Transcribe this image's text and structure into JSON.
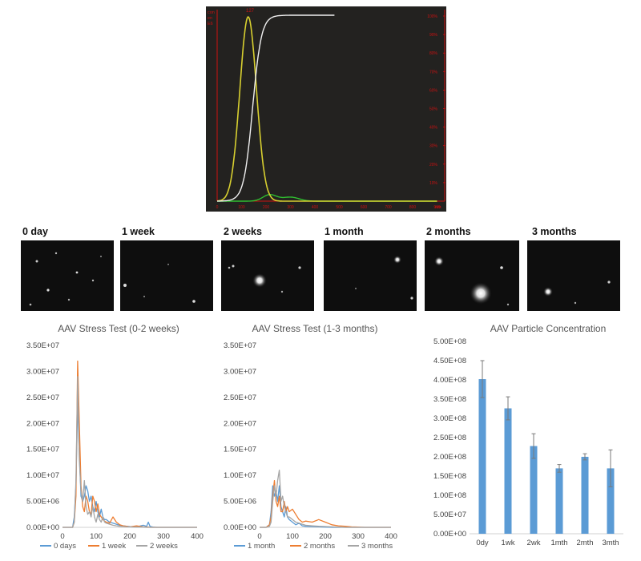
{
  "nta_plot": {
    "left_axis_label": [
      "con",
      "en",
      "E6"
    ],
    "peak_label": "127",
    "right_axis_label": [
      "cum",
      "%"
    ],
    "right_ticks": [
      "100%",
      "90%",
      "80%",
      "70%",
      "60%",
      "50%",
      "40%",
      "30%",
      "20%",
      "10%"
    ],
    "x_ticks": [
      "0",
      "100",
      "200",
      "300",
      "400",
      "500",
      "600",
      "700",
      "800",
      "900"
    ],
    "x_unit": "nm",
    "colors": {
      "bg": "#232220",
      "size": "#d8d030",
      "cumulative": "#f0f0f0",
      "secondary": "#30c030",
      "axis": "#cc1111"
    }
  },
  "panels": [
    {
      "label": "0 day"
    },
    {
      "label": "1 week"
    },
    {
      "label": "2 weeks"
    },
    {
      "label": "1 month"
    },
    {
      "label": "2 months"
    },
    {
      "label": "3 months"
    }
  ],
  "chart_data": [
    {
      "type": "line",
      "title": "AAV Stress Test (0-2 weeks)",
      "xlim": [
        0,
        400
      ],
      "ylim": [
        0,
        35000000
      ],
      "x_ticks": [
        "0",
        "100",
        "200",
        "300",
        "400"
      ],
      "y_ticks": [
        "0.00E+00",
        "5.00E+06",
        "1.00E+07",
        "1.50E+07",
        "2.00E+07",
        "2.50E+07",
        "3.00E+07",
        "3.50E+07"
      ],
      "x": [
        0,
        20,
        30,
        35,
        40,
        45,
        50,
        55,
        60,
        65,
        70,
        75,
        80,
        85,
        90,
        95,
        100,
        105,
        110,
        115,
        120,
        125,
        130,
        140,
        150,
        160,
        170,
        180,
        190,
        200,
        220,
        240,
        250,
        255,
        260,
        270,
        280,
        300,
        320,
        350,
        400
      ],
      "series": [
        {
          "name": "0 days",
          "color": "#5b9bd5",
          "values": [
            0,
            0,
            0,
            2000000,
            8000000,
            24000000,
            14000000,
            6000000,
            5000000,
            6000000,
            8000000,
            7000000,
            5000000,
            6000000,
            4000000,
            3000000,
            5000000,
            3000000,
            2000000,
            3500000,
            2000000,
            1500000,
            1500000,
            1000000,
            800000,
            600000,
            400000,
            300000,
            200000,
            150000,
            100000,
            400000,
            200000,
            1000000,
            200000,
            50000,
            0,
            0,
            0,
            0,
            0
          ]
        },
        {
          "name": "1 week",
          "color": "#ed7d31",
          "values": [
            0,
            0,
            0,
            1000000,
            6000000,
            32000000,
            20000000,
            8000000,
            4000000,
            3000000,
            6000000,
            5000000,
            3000000,
            2500000,
            6000000,
            5000000,
            3000000,
            4500000,
            2500000,
            2000000,
            1500000,
            1200000,
            1000000,
            800000,
            2000000,
            1000000,
            500000,
            300000,
            200000,
            100000,
            300000,
            100000,
            50000,
            50000,
            0,
            0,
            0,
            0,
            0,
            0,
            0
          ]
        },
        {
          "name": "2 weeks",
          "color": "#a5a5a5",
          "values": [
            0,
            0,
            0,
            1000000,
            9000000,
            29000000,
            13000000,
            7000000,
            5000000,
            9000000,
            4000000,
            2500000,
            3000000,
            2000000,
            4000000,
            2000000,
            1000000,
            2500000,
            1500000,
            1000000,
            2000000,
            1000000,
            800000,
            600000,
            400000,
            300000,
            200000,
            150000,
            100000,
            100000,
            50000,
            50000,
            0,
            0,
            0,
            0,
            0,
            0,
            0,
            0,
            0
          ]
        }
      ]
    },
    {
      "type": "line",
      "title": "AAV Stress Test (1-3 months)",
      "xlim": [
        0,
        400
      ],
      "ylim": [
        0,
        35000000
      ],
      "x_ticks": [
        "0",
        "100",
        "200",
        "300",
        "400"
      ],
      "y_ticks": [
        "0.00E+00",
        "5.00E+06",
        "1.00E+07",
        "1.50E+07",
        "2.00E+07",
        "2.50E+07",
        "3.00E+07",
        "3.50E+07"
      ],
      "x": [
        0,
        20,
        30,
        35,
        40,
        45,
        50,
        55,
        60,
        65,
        70,
        75,
        80,
        85,
        90,
        100,
        110,
        120,
        130,
        140,
        160,
        180,
        200,
        220,
        240,
        260,
        280,
        300,
        320,
        350,
        400
      ],
      "series": [
        {
          "name": "1 month",
          "color": "#5b9bd5",
          "values": [
            0,
            0,
            500000,
            3000000,
            8000000,
            6000000,
            7000000,
            5000000,
            8000000,
            4000000,
            3000000,
            2000000,
            4000000,
            2000000,
            1500000,
            1000000,
            500000,
            800000,
            300000,
            200000,
            150000,
            100000,
            50000,
            0,
            0,
            0,
            0,
            0,
            0,
            0,
            0
          ]
        },
        {
          "name": "2 months",
          "color": "#ed7d31",
          "values": [
            0,
            0,
            500000,
            2000000,
            6000000,
            9000000,
            5000000,
            4000000,
            6000000,
            3000000,
            3000000,
            5000000,
            3000000,
            4000000,
            3000000,
            3500000,
            2500000,
            1500000,
            1000000,
            1200000,
            1000000,
            1500000,
            1000000,
            500000,
            300000,
            200000,
            100000,
            50000,
            0,
            0,
            0
          ]
        },
        {
          "name": "3 months",
          "color": "#a5a5a5",
          "values": [
            0,
            0,
            200000,
            1000000,
            5000000,
            8000000,
            6000000,
            9000000,
            11000000,
            5000000,
            6000000,
            4000000,
            3000000,
            2000000,
            2000000,
            1500000,
            1000000,
            800000,
            600000,
            400000,
            300000,
            200000,
            150000,
            100000,
            50000,
            0,
            0,
            0,
            0,
            0,
            0
          ]
        }
      ]
    },
    {
      "type": "bar",
      "title": "AAV Particle Concentration",
      "ylim": [
        0,
        500000000
      ],
      "y_ticks": [
        "0.00E+00",
        "5.00E+07",
        "1.00E+08",
        "1.50E+08",
        "2.00E+08",
        "2.50E+08",
        "3.00E+08",
        "3.50E+08",
        "4.00E+08",
        "4.50E+08",
        "5.00E+08"
      ],
      "categories": [
        "0dy",
        "1wk",
        "2wk",
        "1mth",
        "2mth",
        "3mth"
      ],
      "values": [
        402000000,
        326000000,
        228000000,
        170000000,
        200000000,
        170000000
      ],
      "errors": [
        48000000,
        30000000,
        32000000,
        10000000,
        8000000,
        48000000
      ],
      "color": "#5b9bd5"
    }
  ]
}
